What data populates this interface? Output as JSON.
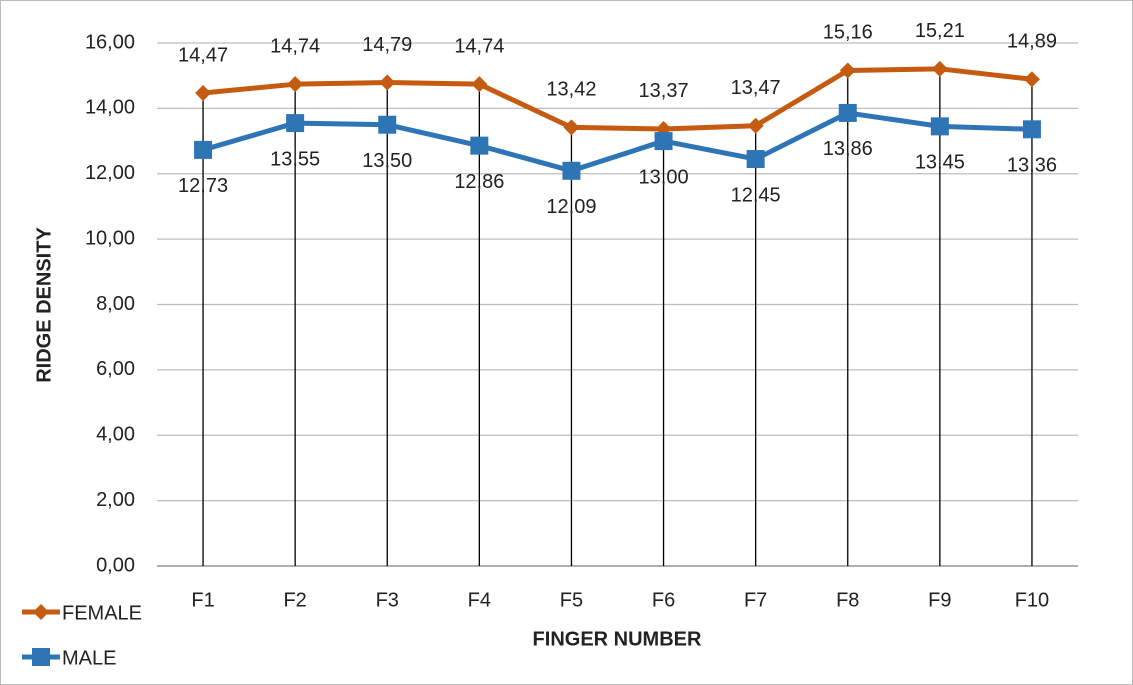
{
  "chart_data": {
    "type": "line",
    "y_label": "RIDGE DENSITY",
    "x_label": "FINGER NUMBER",
    "categories": [
      "F1",
      "F2",
      "F3",
      "F4",
      "F5",
      "F6",
      "F7",
      "F8",
      "F9",
      "F10"
    ],
    "series": [
      {
        "name": "FEMALE",
        "color": "#c55a11",
        "marker": "diamond",
        "values": [
          14.47,
          14.74,
          14.79,
          14.74,
          13.42,
          13.37,
          13.47,
          15.16,
          15.21,
          14.89
        ],
        "value_labels": [
          "14,47",
          "14,74",
          "14,79",
          "14,74",
          "13,42",
          "13,37",
          "13,47",
          "15,16",
          "15,21",
          "14,89"
        ]
      },
      {
        "name": "MALE",
        "color": "#2e75b6",
        "marker": "square",
        "values": [
          12.73,
          13.55,
          13.5,
          12.86,
          12.09,
          13.0,
          12.45,
          13.86,
          13.45,
          13.36
        ],
        "value_labels": [
          "12,73",
          "13,55",
          "13,50",
          "12,86",
          "12,09",
          "13,00",
          "12,45",
          "13,86",
          "13,45",
          "13,36"
        ]
      }
    ],
    "ylim": [
      0,
      16
    ],
    "yticks": [
      {
        "value": 0,
        "label": "0,00"
      },
      {
        "value": 2,
        "label": "2,00"
      },
      {
        "value": 4,
        "label": "4,00"
      },
      {
        "value": 6,
        "label": "6,00"
      },
      {
        "value": 8,
        "label": "8,00"
      },
      {
        "value": 10,
        "label": "10,00"
      },
      {
        "value": 12,
        "label": "12,00"
      },
      {
        "value": 14,
        "label": "14,00"
      },
      {
        "value": 16,
        "label": "16,00"
      }
    ],
    "grid": true,
    "drop_lines": true,
    "legend": "bottom-left"
  }
}
